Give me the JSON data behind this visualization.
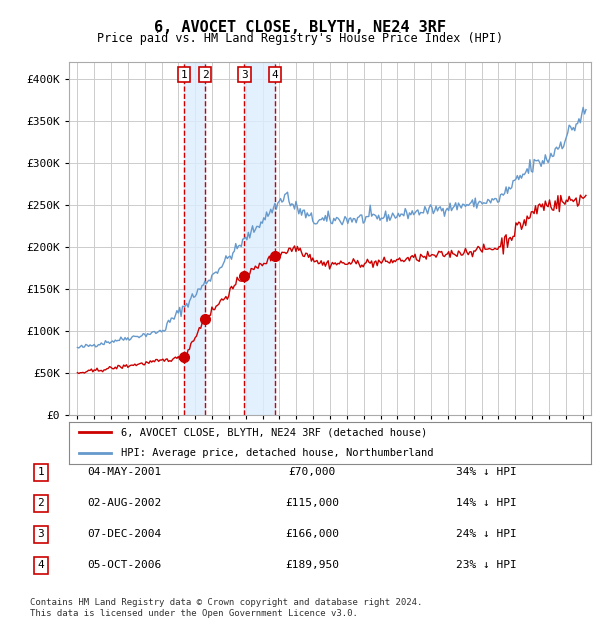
{
  "title": "6, AVOCET CLOSE, BLYTH, NE24 3RF",
  "subtitle": "Price paid vs. HM Land Registry's House Price Index (HPI)",
  "legend_line1": "6, AVOCET CLOSE, BLYTH, NE24 3RF (detached house)",
  "legend_line2": "HPI: Average price, detached house, Northumberland",
  "footer1": "Contains HM Land Registry data © Crown copyright and database right 2024.",
  "footer2": "This data is licensed under the Open Government Licence v3.0.",
  "transactions": [
    {
      "num": 1,
      "date": "04-MAY-2001",
      "price": "£70,000",
      "pct": "34% ↓ HPI",
      "year": 2001.35
    },
    {
      "num": 2,
      "date": "02-AUG-2002",
      "price": "£115,000",
      "pct": "14% ↓ HPI",
      "year": 2002.58
    },
    {
      "num": 3,
      "date": "07-DEC-2004",
      "price": "£166,000",
      "pct": "24% ↓ HPI",
      "year": 2004.92
    },
    {
      "num": 4,
      "date": "05-OCT-2006",
      "price": "£189,950",
      "pct": "23% ↓ HPI",
      "year": 2006.75
    }
  ],
  "sale_values": [
    70000,
    115000,
    166000,
    189950
  ],
  "red_color": "#cc0000",
  "blue_color": "#6699cc",
  "background_color": "#ffffff",
  "grid_color": "#cccccc",
  "ylim": [
    0,
    420000
  ],
  "yticks": [
    0,
    50000,
    100000,
    150000,
    200000,
    250000,
    300000,
    350000,
    400000
  ],
  "xlim_start": 1994.5,
  "xlim_end": 2025.5
}
